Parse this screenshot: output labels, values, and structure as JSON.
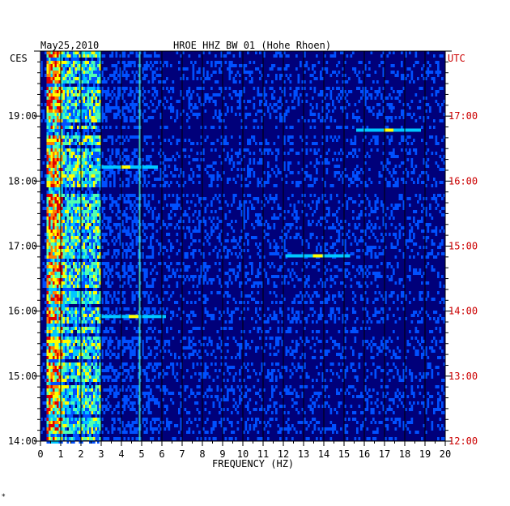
{
  "header": {
    "date": "May25,2010",
    "title": "HROE HHZ BW 01 (Hohe Rhoen)",
    "left_tz": "CES",
    "right_tz": "UTC"
  },
  "footer": {
    "mark": "*"
  },
  "chart_data": {
    "type": "heatmap",
    "title": "HROE HHZ BW 01 (Hohe Rhoen)",
    "date": "May25,2010",
    "xlabel": "FREQUENCY (HZ)",
    "xlim": [
      0,
      20
    ],
    "x_ticks": [
      "0",
      "1",
      "2",
      "3",
      "4",
      "5",
      "6",
      "7",
      "8",
      "9",
      "10",
      "11",
      "12",
      "13",
      "14",
      "15",
      "16",
      "17",
      "18",
      "19",
      "20"
    ],
    "y_left_label": "CES",
    "y_right_label": "UTC",
    "y_left_ticks": [
      "19:00",
      "18:00",
      "17:00",
      "16:00",
      "15:00",
      "14:00"
    ],
    "y_right_ticks": [
      "17:00",
      "16:00",
      "15:00",
      "14:00",
      "13:00",
      "12:00"
    ],
    "time_range_utc": [
      "12:00",
      "18:00"
    ],
    "time_range_local": [
      "14:00",
      "20:00"
    ],
    "colormap": [
      "#00007a",
      "#0000dc",
      "#0050ff",
      "#00c8ff",
      "#50ffb0",
      "#ffff00",
      "#ff8000",
      "#e00000"
    ],
    "grid": true,
    "features": [
      {
        "band_hz": [
          0.3,
          1.0
        ],
        "intensity": "high",
        "persistent": true
      },
      {
        "band_hz": [
          1.0,
          3.0
        ],
        "intensity": "medium",
        "persistent": true
      },
      {
        "freq_hz": 4.9,
        "intensity": "narrow line",
        "persistent": true
      },
      {
        "freq_hz": 17.2,
        "utc": "16:47",
        "intensity": "tonal band"
      },
      {
        "freq_hz": 4.2,
        "utc": "16:13",
        "intensity": "tonal band"
      },
      {
        "freq_hz": 13.7,
        "utc": "14:51",
        "intensity": "tonal band"
      },
      {
        "freq_hz": 4.6,
        "utc": "13:55",
        "intensity": "tonal band"
      }
    ]
  }
}
